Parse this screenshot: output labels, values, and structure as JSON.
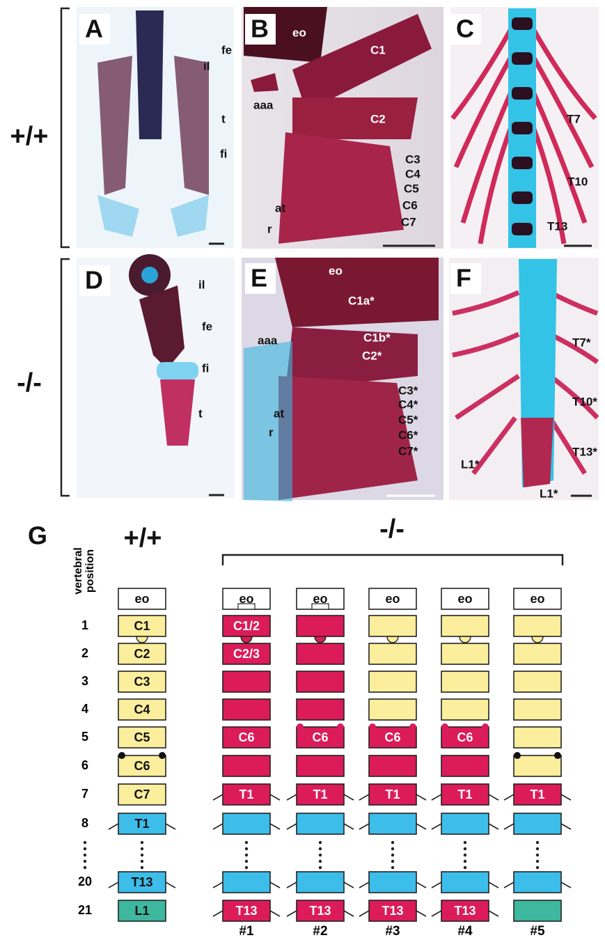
{
  "genotype_labels": {
    "wild_type": "+/+",
    "mutant": "-/-"
  },
  "panels": [
    {
      "letter": "A",
      "labels": [
        "il",
        "fe",
        "t",
        "fi"
      ]
    },
    {
      "letter": "B",
      "labels": [
        "eo",
        "C1",
        "aaa",
        "C2",
        "C3",
        "C4",
        "C5",
        "C6",
        "C7",
        "at",
        "r"
      ]
    },
    {
      "letter": "C",
      "labels": [
        "T7",
        "T10",
        "T13"
      ]
    },
    {
      "letter": "D",
      "labels": [
        "il",
        "fe",
        "fi",
        "t"
      ]
    },
    {
      "letter": "E",
      "labels": [
        "eo",
        "C1a*",
        "C1b*",
        "aaa",
        "C2*",
        "C3*",
        "C4*",
        "C5*",
        "C6*",
        "C7*",
        "at",
        "r"
      ]
    },
    {
      "letter": "F",
      "labels": [
        "T7*",
        "T10*",
        "T13*",
        "L1*",
        "L1*"
      ]
    }
  ],
  "panel_g": {
    "letter": "G",
    "axis_label": [
      "vertebral",
      "position"
    ],
    "positions": [
      "1",
      "2",
      "3",
      "4",
      "5",
      "6",
      "7",
      "8",
      "20",
      "21"
    ],
    "wild_type": {
      "header": "+/+",
      "boxes": [
        {
          "label": "eo",
          "color": "#ffffff"
        },
        {
          "label": "C1",
          "color": "#fbee9c"
        },
        {
          "label": "C2",
          "color": "#fbee9c"
        },
        {
          "label": "C3",
          "color": "#fbee9c"
        },
        {
          "label": "C4",
          "color": "#fbee9c"
        },
        {
          "label": "C5",
          "color": "#fbee9c"
        },
        {
          "label": "C6",
          "color": "#fbee9c"
        },
        {
          "label": "C7",
          "color": "#fbee9c"
        },
        {
          "label": "T1",
          "color": "#3dbde9"
        },
        {
          "label": "T13",
          "color": "#3dbde9"
        },
        {
          "label": "L1",
          "color": "#3db79e"
        }
      ]
    },
    "mutant": {
      "header": "-/-",
      "columns": [
        {
          "name": "#1",
          "boxes": [
            {
              "label": "eo",
              "color": "#ffffff"
            },
            {
              "label": "C1/2",
              "color": "#dc1b5a"
            },
            {
              "label": "C2/3",
              "color": "#dc1b5a"
            },
            {
              "color": "#dc1b5a"
            },
            {
              "color": "#dc1b5a"
            },
            {
              "label": "C6",
              "color": "#dc1b5a"
            },
            {
              "color": "#dc1b5a"
            },
            {
              "label": "T1",
              "color": "#dc1b5a"
            },
            {
              "color": "#3dbde9"
            },
            {
              "color": "#3dbde9"
            },
            {
              "label": "T13",
              "color": "#dc1b5a"
            }
          ]
        },
        {
          "name": "#2",
          "boxes": [
            {
              "label": "eo",
              "color": "#ffffff"
            },
            {
              "color": "#dc1b5a"
            },
            {
              "color": "#dc1b5a"
            },
            {
              "color": "#dc1b5a"
            },
            {
              "color": "#dc1b5a"
            },
            {
              "label": "C6",
              "color": "#dc1b5a"
            },
            {
              "color": "#dc1b5a"
            },
            {
              "label": "T1",
              "color": "#dc1b5a"
            },
            {
              "color": "#3dbde9"
            },
            {
              "color": "#3dbde9"
            },
            {
              "label": "T13",
              "color": "#dc1b5a"
            }
          ]
        },
        {
          "name": "#3",
          "boxes": [
            {
              "label": "eo",
              "color": "#ffffff"
            },
            {
              "color": "#fbee9c"
            },
            {
              "color": "#fbee9c"
            },
            {
              "color": "#fbee9c"
            },
            {
              "color": "#fbee9c"
            },
            {
              "label": "C6",
              "color": "#dc1b5a"
            },
            {
              "color": "#dc1b5a"
            },
            {
              "label": "T1",
              "color": "#dc1b5a"
            },
            {
              "color": "#3dbde9"
            },
            {
              "color": "#3dbde9"
            },
            {
              "label": "T13",
              "color": "#dc1b5a"
            }
          ]
        },
        {
          "name": "#4",
          "boxes": [
            {
              "label": "eo",
              "color": "#ffffff"
            },
            {
              "color": "#fbee9c"
            },
            {
              "color": "#fbee9c"
            },
            {
              "color": "#fbee9c"
            },
            {
              "color": "#fbee9c"
            },
            {
              "label": "C6",
              "color": "#dc1b5a"
            },
            {
              "color": "#dc1b5a"
            },
            {
              "label": "T1",
              "color": "#dc1b5a"
            },
            {
              "color": "#3dbde9"
            },
            {
              "color": "#3dbde9"
            },
            {
              "label": "T13",
              "color": "#dc1b5a"
            }
          ]
        },
        {
          "name": "#5",
          "boxes": [
            {
              "label": "eo",
              "color": "#ffffff"
            },
            {
              "color": "#fbee9c"
            },
            {
              "color": "#fbee9c"
            },
            {
              "color": "#fbee9c"
            },
            {
              "color": "#fbee9c"
            },
            {
              "color": "#fbee9c"
            },
            {
              "color": "#fbee9c"
            },
            {
              "label": "T1",
              "color": "#dc1b5a"
            },
            {
              "color": "#3dbde9"
            },
            {
              "color": "#3dbde9"
            },
            {
              "color": "#3db79e"
            }
          ]
        }
      ]
    }
  }
}
